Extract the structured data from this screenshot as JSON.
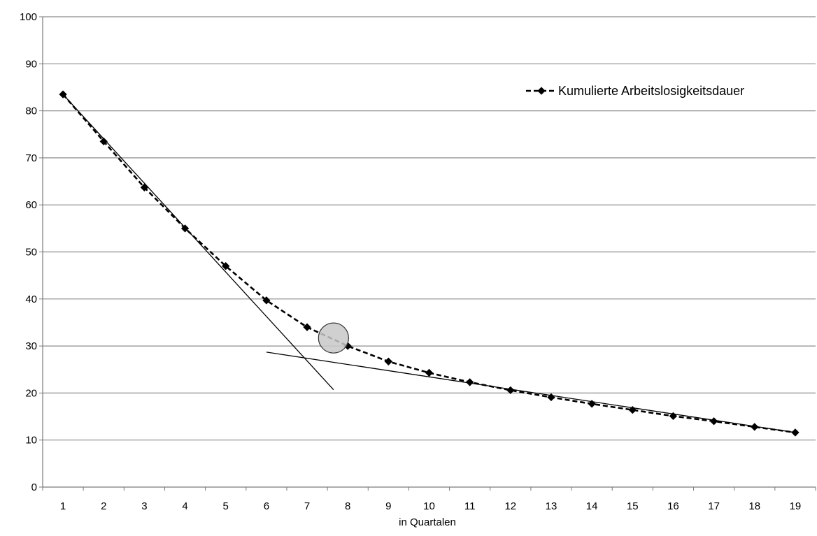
{
  "chart_data": {
    "type": "line",
    "title": "",
    "xlabel": "in Quartalen",
    "ylabel": "",
    "x": [
      1,
      2,
      3,
      4,
      5,
      6,
      7,
      8,
      9,
      10,
      11,
      12,
      13,
      14,
      15,
      16,
      17,
      18,
      19
    ],
    "series": [
      {
        "name": "Kumulierte Arbeitslosigkeitsdauer",
        "values": [
          83.5,
          73.5,
          63.7,
          55.0,
          47.0,
          39.7,
          34.0,
          30.0,
          26.7,
          24.3,
          22.3,
          20.6,
          19.1,
          17.7,
          16.4,
          15.1,
          14.0,
          12.8,
          11.6
        ],
        "style": "dashed",
        "marker": "diamond",
        "color": "#000000"
      }
    ],
    "annotations": {
      "tangent_lines": [
        {
          "from": [
            1,
            83.5
          ],
          "to": [
            7.65,
            20.7
          ]
        },
        {
          "from": [
            6,
            28.7
          ],
          "to": [
            19,
            11.6
          ]
        }
      ],
      "highlight_circle": {
        "center": [
          7.65,
          31.7
        ],
        "radius_y": 3.2,
        "color": "#c8c8c8"
      }
    },
    "xlim": [
      0.5,
      19.5
    ],
    "ylim": [
      0,
      100
    ],
    "yticks": [
      0,
      10,
      20,
      30,
      40,
      50,
      60,
      70,
      80,
      90,
      100
    ],
    "xticks": [
      "1",
      "2",
      "3",
      "4",
      "5",
      "6",
      "7",
      "8",
      "9",
      "10",
      "11",
      "12",
      "13",
      "14",
      "15",
      "16",
      "17",
      "18",
      "19"
    ],
    "grid": true,
    "legend_position": "top-right"
  }
}
